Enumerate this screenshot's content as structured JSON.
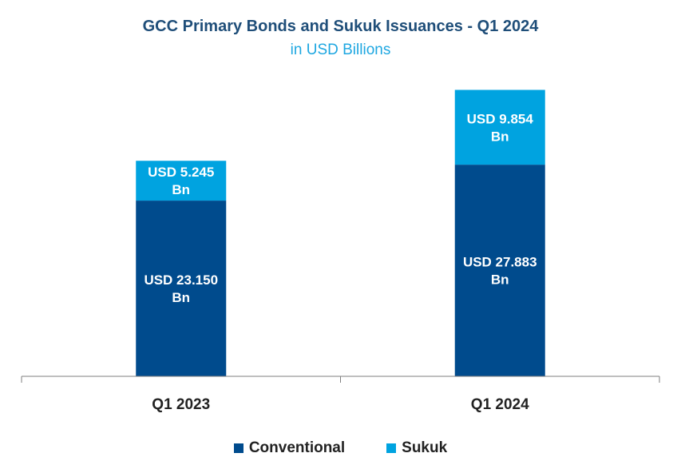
{
  "colors": {
    "title": "#1f4e79",
    "subtitle": "#1ea7e1",
    "conventional": "#004b8d",
    "sukuk": "#00a3e0",
    "axis": "#7f7f7f",
    "label": "#ffffff",
    "tick": "#222222"
  },
  "chart_data": {
    "type": "bar",
    "stacked": true,
    "title": "GCC Primary Bonds and Sukuk Issuances - Q1 2024",
    "subtitle": "in USD Billions",
    "categories": [
      "Q1 2023",
      "Q1 2024"
    ],
    "series": [
      {
        "name": "Conventional",
        "values": [
          23.15,
          27.883
        ],
        "labels": [
          [
            "USD 23.150",
            "Bn"
          ],
          [
            "USD 27.883",
            "Bn"
          ]
        ]
      },
      {
        "name": "Sukuk",
        "values": [
          5.245,
          9.854
        ],
        "labels": [
          [
            "USD 5.245",
            "Bn"
          ],
          [
            "USD 9.854",
            "Bn"
          ]
        ]
      }
    ],
    "ylim": [
      0,
      40
    ],
    "grid": false,
    "legend": "bottom"
  }
}
